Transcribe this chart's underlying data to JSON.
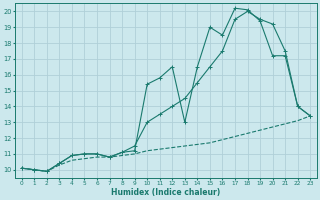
{
  "bg_color": "#cce8ed",
  "grid_color": "#b0d0d8",
  "line_color": "#1a7a6e",
  "xlabel": "Humidex (Indice chaleur)",
  "xlim": [
    -0.5,
    23.5
  ],
  "ylim": [
    9.5,
    20.5
  ],
  "yticks": [
    10,
    11,
    12,
    13,
    14,
    15,
    16,
    17,
    18,
    19,
    20
  ],
  "xticks": [
    0,
    1,
    2,
    3,
    4,
    5,
    6,
    7,
    8,
    9,
    10,
    11,
    12,
    13,
    14,
    15,
    16,
    17,
    18,
    19,
    20,
    21,
    22,
    23
  ],
  "line_dashed_x": [
    0,
    1,
    2,
    3,
    4,
    5,
    6,
    7,
    8,
    9,
    10,
    11,
    12,
    13,
    14,
    15,
    16,
    17,
    18,
    19,
    20,
    21,
    22,
    23
  ],
  "line_dashed_y": [
    10.1,
    10.0,
    9.9,
    10.3,
    10.6,
    10.7,
    10.8,
    10.8,
    10.9,
    11.0,
    11.2,
    11.3,
    11.4,
    11.5,
    11.6,
    11.7,
    11.9,
    12.1,
    12.3,
    12.5,
    12.7,
    12.9,
    13.1,
    13.4
  ],
  "line_spiky_x": [
    0,
    1,
    2,
    3,
    4,
    5,
    6,
    7,
    8,
    9,
    10,
    11,
    12,
    13,
    14,
    15,
    16,
    17,
    18,
    19,
    20,
    21,
    22,
    23
  ],
  "line_spiky_y": [
    10.1,
    10.0,
    9.9,
    10.4,
    10.9,
    11.0,
    11.0,
    10.8,
    11.1,
    11.2,
    15.4,
    15.8,
    16.5,
    13.0,
    16.5,
    19.0,
    18.5,
    20.2,
    20.1,
    19.4,
    17.2,
    17.2,
    14.0,
    13.4
  ],
  "line_smooth_x": [
    0,
    1,
    2,
    3,
    4,
    5,
    6,
    7,
    8,
    9,
    10,
    11,
    12,
    13,
    14,
    15,
    16,
    17,
    18,
    19,
    20,
    21,
    22,
    23
  ],
  "line_smooth_y": [
    10.1,
    10.0,
    9.9,
    10.4,
    10.9,
    11.0,
    11.0,
    10.8,
    11.1,
    11.5,
    13.0,
    13.5,
    14.0,
    14.5,
    15.5,
    16.5,
    17.5,
    19.5,
    20.0,
    19.5,
    19.2,
    17.5,
    14.0,
    13.4
  ]
}
